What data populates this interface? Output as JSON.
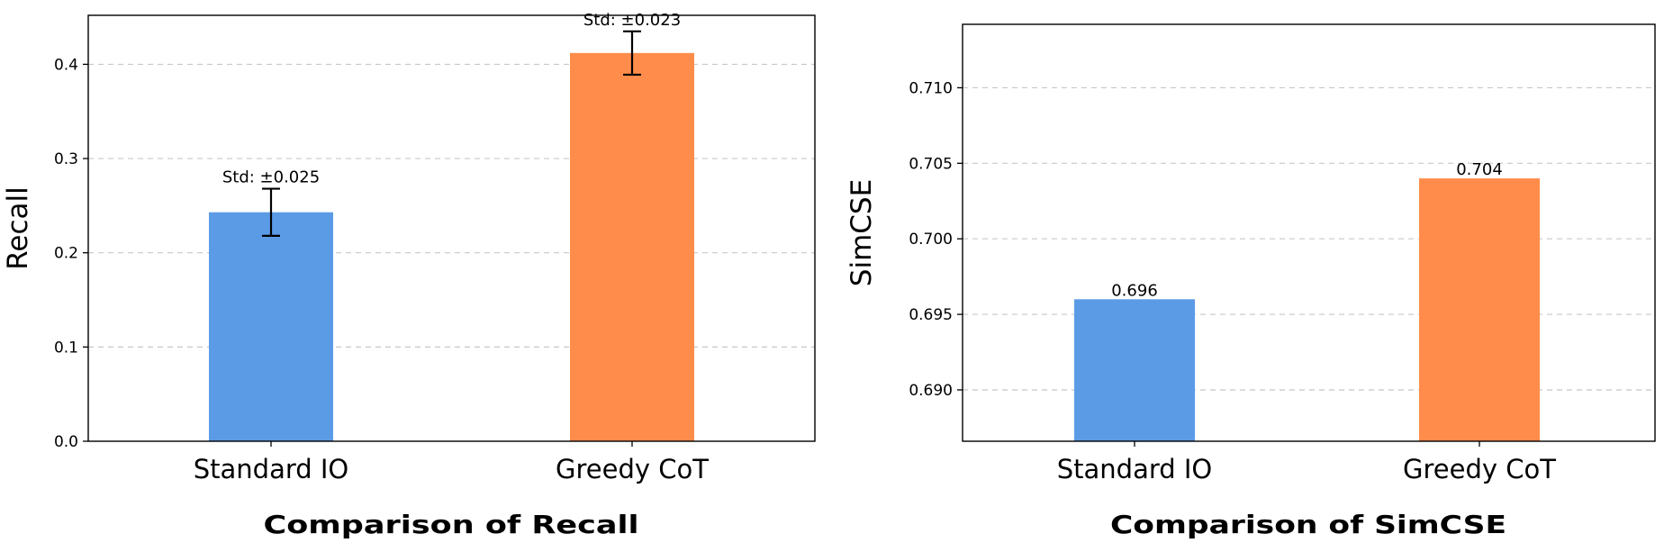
{
  "chart_data": [
    {
      "type": "bar",
      "categories": [
        "Standard IO",
        "Greedy CoT"
      ],
      "values": [
        0.243,
        0.412
      ],
      "errors": [
        0.025,
        0.023
      ],
      "error_labels": [
        "Std: ±0.025",
        "Std: ±0.023"
      ],
      "ylabel": "Recall",
      "caption": "Comparison of Recall",
      "ylim": [
        0,
        0.452
      ],
      "yticks": [
        0.0,
        0.1,
        0.2,
        0.3,
        0.4
      ],
      "ytick_labels": [
        "0.0",
        "0.1",
        "0.2",
        "0.3",
        "0.4"
      ],
      "colors": [
        "#5b9be6",
        "#ff8c4a"
      ],
      "grid": "y-dashed"
    },
    {
      "type": "bar",
      "categories": [
        "Standard IO",
        "Greedy CoT"
      ],
      "values": [
        0.696,
        0.704
      ],
      "value_labels": [
        "0.696",
        "0.704"
      ],
      "ylabel": "SimCSE",
      "caption": "Comparison of SimCSE",
      "ylim": [
        0.6866,
        0.7142
      ],
      "yticks": [
        0.69,
        0.695,
        0.7,
        0.705,
        0.71
      ],
      "ytick_labels": [
        "0.690",
        "0.695",
        "0.700",
        "0.705",
        "0.710"
      ],
      "colors": [
        "#5b9be6",
        "#ff8c4a"
      ],
      "grid": "y-dashed"
    }
  ]
}
